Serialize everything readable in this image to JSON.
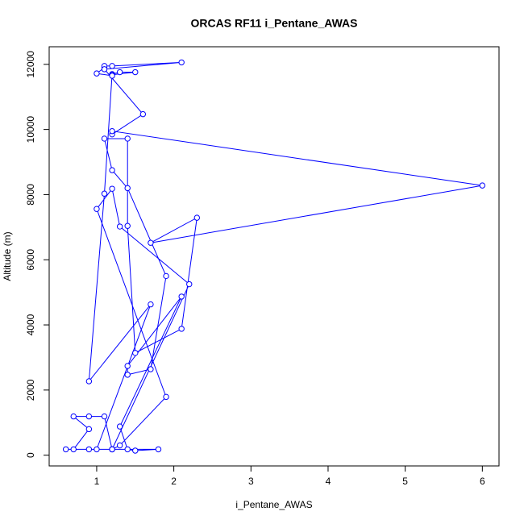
{
  "chart_data": {
    "type": "line",
    "markers": true,
    "title": "ORCAS RF11 i_Pentane_AWAS",
    "x_label": "i_Pentane_AWAS",
    "y_label": "Altitude (m)",
    "color": "#0000ff",
    "x": [
      1.2,
      0.6,
      0.9,
      1.2,
      1.1,
      0.9,
      0.7,
      0.9,
      0.7,
      1.0,
      1.7,
      0.9,
      1.1,
      1.2,
      1.3,
      1.5,
      1.2,
      1.2,
      1.0,
      1.1,
      1.1,
      1.2,
      2.1,
      1.1,
      1.6,
      1.2,
      1.2,
      6.0,
      1.7,
      2.3,
      2.1,
      1.5,
      1.4,
      1.4,
      1.1,
      1.2,
      1.4,
      1.9,
      1.7,
      1.4,
      1.4,
      2.1,
      1.3,
      1.4,
      1.5,
      1.8,
      1.2,
      2.2,
      1.3,
      1.2,
      1.0,
      1.9,
      1.3,
      1.2
    ],
    "values": [
      180,
      180,
      180,
      180,
      1190,
      1190,
      1190,
      800,
      180,
      180,
      4630,
      2270,
      8030,
      11700,
      11760,
      11760,
      11680,
      11650,
      11720,
      11900,
      11950,
      11950,
      12060,
      11850,
      10470,
      9850,
      9950,
      8280,
      6520,
      7290,
      3880,
      3140,
      7040,
      9720,
      9720,
      8750,
      8200,
      5500,
      2640,
      2470,
      2740,
      4870,
      880,
      180,
      140,
      180,
      180,
      5250,
      7020,
      8180,
      7560,
      1790,
      300,
      180
    ],
    "xlim": [
      0.384,
      6.216
    ],
    "ylim": [
      -330,
      12540
    ],
    "xticks": [
      1,
      2,
      3,
      4,
      5,
      6
    ],
    "yticks": [
      0,
      2000,
      4000,
      6000,
      8000,
      10000,
      12000
    ]
  }
}
